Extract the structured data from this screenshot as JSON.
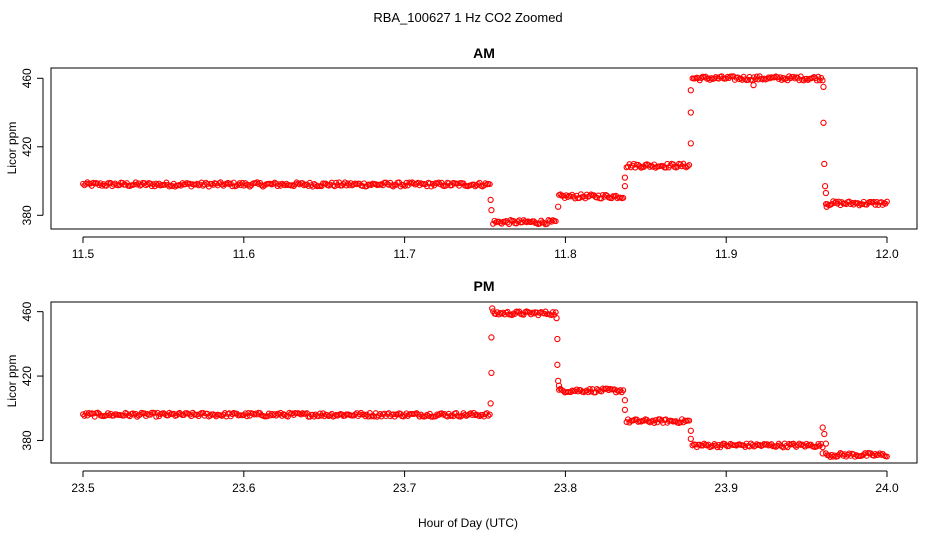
{
  "title": "RBA_100627  1 Hz CO2 Zoomed",
  "xlabel": "Hour of Day (UTC)",
  "marker_color": "#ff0000",
  "chart_data": [
    {
      "type": "scatter",
      "title": "AM",
      "ylabel": "Licor ppm",
      "xlim": [
        11.5,
        12.0
      ],
      "ylim": [
        372,
        466
      ],
      "xticks": [
        "11.5",
        "11.6",
        "11.7",
        "11.8",
        "11.9",
        "12.0"
      ],
      "yticks": [
        "380",
        "420",
        "460"
      ],
      "series": [
        {
          "segments": [
            {
              "x0": 11.5,
              "x1": 11.753,
              "y": 398
            },
            {
              "x0": 11.755,
              "x1": 11.794,
              "y": 376
            },
            {
              "x0": 11.796,
              "x1": 11.836,
              "y": 391
            },
            {
              "x0": 11.838,
              "x1": 11.877,
              "y": 409
            },
            {
              "x0": 11.879,
              "x1": 11.96,
              "y": 460
            },
            {
              "x0": 11.962,
              "x1": 12.0,
              "y": 387
            }
          ],
          "transitions": [
            {
              "x": 11.7535,
              "y": 389
            },
            {
              "x": 11.754,
              "y": 383
            },
            {
              "x": 11.7955,
              "y": 385
            },
            {
              "x": 11.837,
              "y": 397
            },
            {
              "x": 11.837,
              "y": 402
            },
            {
              "x": 11.878,
              "y": 422
            },
            {
              "x": 11.878,
              "y": 440
            },
            {
              "x": 11.878,
              "y": 453
            },
            {
              "x": 11.917,
              "y": 456
            },
            {
              "x": 11.9605,
              "y": 455
            },
            {
              "x": 11.9605,
              "y": 434
            },
            {
              "x": 11.961,
              "y": 410
            },
            {
              "x": 11.9615,
              "y": 397
            },
            {
              "x": 11.962,
              "y": 393
            },
            {
              "x": 11.9625,
              "y": 385
            }
          ]
        }
      ]
    },
    {
      "type": "scatter",
      "title": "PM",
      "ylabel": "Licor ppm",
      "xlim": [
        23.5,
        24.0
      ],
      "ylim": [
        366,
        466
      ],
      "xticks": [
        "23.5",
        "23.6",
        "23.7",
        "23.8",
        "23.9",
        "24.0"
      ],
      "yticks": [
        "380",
        "420",
        "460"
      ],
      "series": [
        {
          "segments": [
            {
              "x0": 23.5,
              "x1": 23.753,
              "y": 396
            },
            {
              "x0": 23.755,
              "x1": 23.794,
              "y": 459
            },
            {
              "x0": 23.796,
              "x1": 23.836,
              "y": 411
            },
            {
              "x0": 23.838,
              "x1": 23.877,
              "y": 392
            },
            {
              "x0": 23.879,
              "x1": 23.96,
              "y": 377
            },
            {
              "x0": 23.962,
              "x1": 24.0,
              "y": 371
            }
          ],
          "transitions": [
            {
              "x": 23.7535,
              "y": 403
            },
            {
              "x": 23.754,
              "y": 422
            },
            {
              "x": 23.754,
              "y": 444
            },
            {
              "x": 23.7545,
              "y": 462
            },
            {
              "x": 23.7945,
              "y": 456
            },
            {
              "x": 23.795,
              "y": 443
            },
            {
              "x": 23.795,
              "y": 427
            },
            {
              "x": 23.7955,
              "y": 417
            },
            {
              "x": 23.796,
              "y": 414
            },
            {
              "x": 23.837,
              "y": 405
            },
            {
              "x": 23.837,
              "y": 399
            },
            {
              "x": 23.878,
              "y": 386
            },
            {
              "x": 23.878,
              "y": 381
            },
            {
              "x": 23.96,
              "y": 388
            },
            {
              "x": 23.96,
              "y": 372
            },
            {
              "x": 23.961,
              "y": 384
            },
            {
              "x": 23.962,
              "y": 378
            }
          ]
        }
      ]
    }
  ]
}
